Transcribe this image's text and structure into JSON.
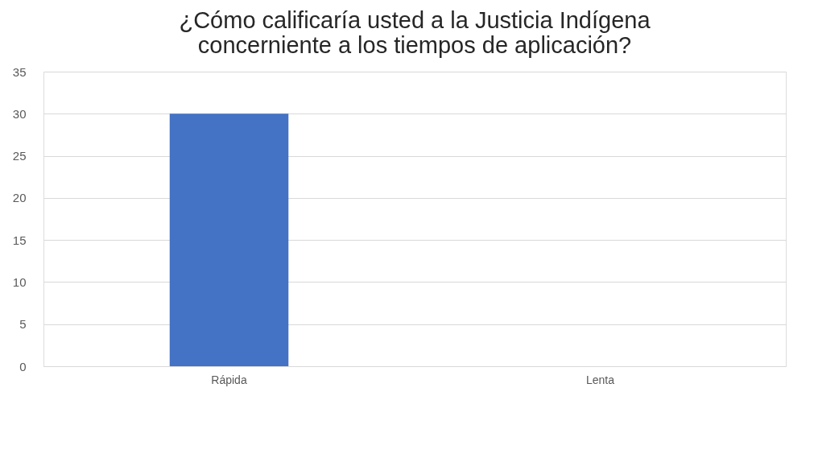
{
  "chart_data": {
    "type": "bar",
    "title": "¿Cómo calificaría usted a la Justicia Indígena concerniente a los tiempos de aplicación?",
    "categories": [
      "Rápida",
      "Lenta"
    ],
    "series": [
      {
        "color": "#4472c4",
        "values": [
          30,
          0
        ]
      }
    ],
    "ylim": [
      0,
      35
    ],
    "yticks": [
      0,
      5,
      10,
      15,
      20,
      25,
      30,
      35
    ],
    "grid": "y",
    "legend": false
  }
}
